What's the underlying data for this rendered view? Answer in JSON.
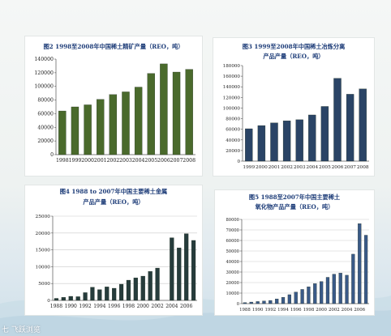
{
  "chart_data": [
    {
      "type": "bar",
      "title": "图2  1998至2008年中国稀土精矿产量（REO，吨）",
      "categories": [
        "1998",
        "1999",
        "2000",
        "2001",
        "2002",
        "2003",
        "2004",
        "2005",
        "2006",
        "2007",
        "2008"
      ],
      "values": [
        64000,
        70000,
        73000,
        81000,
        88000,
        92000,
        99000,
        119000,
        133000,
        121000,
        125000
      ],
      "ylim": [
        0,
        140000
      ],
      "yticks": [
        0,
        20000,
        40000,
        60000,
        80000,
        100000,
        120000,
        140000
      ],
      "color": "#4a6a2c",
      "grid": false
    },
    {
      "type": "bar",
      "title": "图3  1999至2008年中国稀土冶炼分离",
      "subtitle": "产品产量（REO，吨）",
      "categories": [
        "1999",
        "2000",
        "2001",
        "2002",
        "2003",
        "2004",
        "2005",
        "2006",
        "2007",
        "2008"
      ],
      "values": [
        61000,
        67000,
        72000,
        76000,
        78000,
        87000,
        103000,
        156000,
        126000,
        136000
      ],
      "ylim": [
        0,
        180000
      ],
      "yticks": [
        0,
        20000,
        40000,
        60000,
        80000,
        100000,
        120000,
        140000,
        160000,
        180000
      ],
      "color": "#2a4466",
      "grid": false
    },
    {
      "type": "bar",
      "title": "图4  1988 to 2007年中国主要稀土金属",
      "subtitle": "产品产量（REO，吨）",
      "categories": [
        "1988",
        "1989",
        "1990",
        "1991",
        "1992",
        "1993",
        "1994",
        "1995",
        "1996",
        "1997",
        "1998",
        "1999",
        "2000",
        "2001",
        "2002",
        "2003",
        "2004",
        "2005",
        "2006",
        "2007"
      ],
      "tick_labels": [
        "1988",
        "1990",
        "1992",
        "1994",
        "1996",
        "1998",
        "2000",
        "2002",
        "2004",
        "2006"
      ],
      "values": [
        600,
        900,
        1200,
        1100,
        2300,
        3900,
        3200,
        4000,
        3600,
        4800,
        6000,
        6700,
        7200,
        8600,
        9600,
        null,
        18600,
        15600,
        19800,
        17800
      ],
      "ylim": [
        0,
        25000
      ],
      "yticks": [
        0,
        5000,
        10000,
        15000,
        20000,
        25000
      ],
      "color": "#263c3c",
      "grid": true
    },
    {
      "type": "bar",
      "title": "图5  1988至2007年中国主要稀土",
      "subtitle": "氧化物产品产量（REO，吨）",
      "categories": [
        "1988",
        "1989",
        "1990",
        "1991",
        "1992",
        "1993",
        "1994",
        "1995",
        "1996",
        "1997",
        "1998",
        "1999",
        "2000",
        "2001",
        "2002",
        "2003",
        "2004",
        "2005",
        "2006",
        "2007"
      ],
      "tick_labels": [
        "1988",
        "1990",
        "1992",
        "1994",
        "1996",
        "1998",
        "2000",
        "2002",
        "2004",
        "2006"
      ],
      "values": [
        1000,
        1500,
        2000,
        2500,
        3000,
        4500,
        6000,
        8500,
        11000,
        13500,
        16000,
        19000,
        21000,
        25000,
        28000,
        29000,
        27000,
        47000,
        76000,
        65000
      ],
      "ylim": [
        0,
        80000
      ],
      "yticks": [
        0,
        10000,
        20000,
        30000,
        40000,
        50000,
        60000,
        70000,
        80000
      ],
      "color": "#3a5a88",
      "grid": true
    }
  ],
  "watermark": "七 飞跃浏览"
}
